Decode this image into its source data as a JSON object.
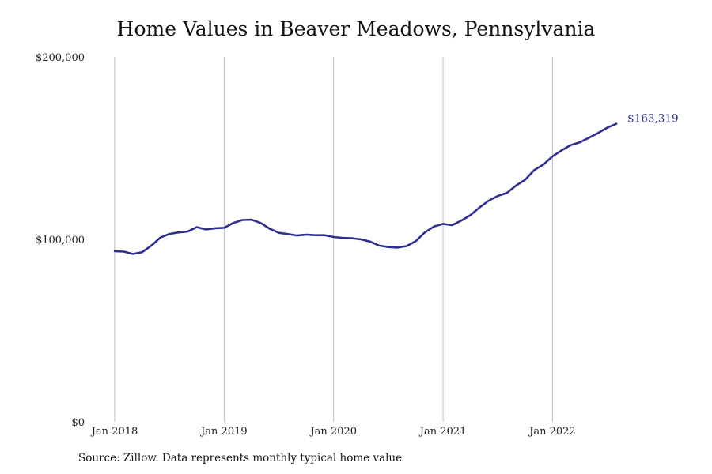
{
  "chart_data": {
    "type": "line",
    "title": "Home Values in Beaver Meadows, Pennsylvania",
    "xlabel": "",
    "ylabel": "",
    "ylim": [
      0,
      200000
    ],
    "x_range": [
      "2018-01",
      "2022-08"
    ],
    "y_ticks": [
      {
        "value": 0,
        "label": "$0"
      },
      {
        "value": 100000,
        "label": "$100,000"
      },
      {
        "value": 200000,
        "label": "$200,000"
      }
    ],
    "x_ticks": [
      {
        "date": "2018-01",
        "label": "Jan 2018"
      },
      {
        "date": "2019-01",
        "label": "Jan 2019"
      },
      {
        "date": "2020-01",
        "label": "Jan 2020"
      },
      {
        "date": "2021-01",
        "label": "Jan 2021"
      },
      {
        "date": "2022-01",
        "label": "Jan 2022"
      }
    ],
    "grid": {
      "vertical": true,
      "horizontal": false
    },
    "series": [
      {
        "color": "#2e2f8f",
        "x": [
          "2018-01",
          "2018-02",
          "2018-03",
          "2018-04",
          "2018-05",
          "2018-06",
          "2018-07",
          "2018-08",
          "2018-09",
          "2018-10",
          "2018-11",
          "2018-12",
          "2019-01",
          "2019-02",
          "2019-03",
          "2019-04",
          "2019-05",
          "2019-06",
          "2019-07",
          "2019-08",
          "2019-09",
          "2019-10",
          "2019-11",
          "2019-12",
          "2020-01",
          "2020-02",
          "2020-03",
          "2020-04",
          "2020-05",
          "2020-06",
          "2020-07",
          "2020-08",
          "2020-09",
          "2020-10",
          "2020-11",
          "2020-12",
          "2021-01",
          "2021-02",
          "2021-03",
          "2021-04",
          "2021-05",
          "2021-06",
          "2021-07",
          "2021-08",
          "2021-09",
          "2021-10",
          "2021-11",
          "2021-12",
          "2022-01",
          "2022-02",
          "2022-03",
          "2022-04",
          "2022-05",
          "2022-06",
          "2022-07",
          "2022-08"
        ],
        "values": [
          93500,
          93300,
          92000,
          93000,
          96500,
          101000,
          103000,
          103800,
          104300,
          106700,
          105400,
          106100,
          106300,
          109000,
          110600,
          110800,
          109000,
          105800,
          103600,
          102900,
          102100,
          102600,
          102300,
          102300,
          101300,
          100800,
          100600,
          100000,
          98800,
          96600,
          95800,
          95500,
          96300,
          99000,
          103800,
          107000,
          108500,
          107800,
          110300,
          113300,
          117500,
          121200,
          123800,
          125500,
          129500,
          132700,
          138000,
          141000,
          145500,
          148800,
          151700,
          153200,
          155700,
          158300,
          161200,
          163319
        ],
        "end_label": "$163,319"
      }
    ]
  },
  "footer": {
    "source": "Source: Zillow. Data represents monthly typical home value"
  }
}
